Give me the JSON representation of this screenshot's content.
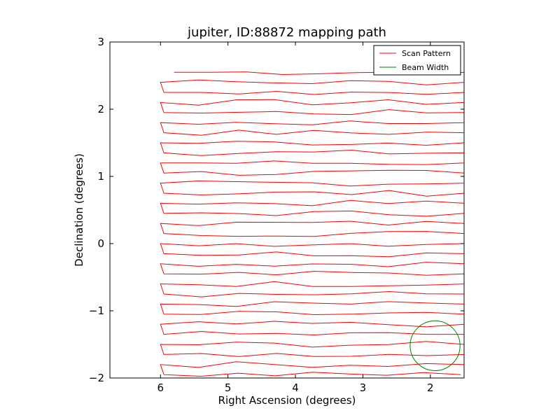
{
  "chart_data": {
    "type": "line",
    "title": "jupiter, ID:88872 mapping path",
    "xlabel": "Right Ascension (degrees)",
    "ylabel": "Declination (degrees)",
    "xlim": [
      6.75,
      1.5
    ],
    "ylim": [
      -2,
      3
    ],
    "x_ticks": [
      "6",
      "5",
      "4",
      "3",
      "2"
    ],
    "y_ticks": [
      "3",
      "2",
      "1",
      "0",
      "−1",
      "−2"
    ],
    "legend": {
      "placement": "top-right",
      "entries": [
        {
          "label": "Scan Pattern",
          "color": "#ff0000"
        },
        {
          "label": "Beam Width",
          "color": "#008000"
        }
      ]
    },
    "series": [
      {
        "name": "Scan Pattern",
        "color": "#ff0000",
        "style": "raster scan of alternating rows",
        "rows": [
          {
            "y": 2.55,
            "from": 5.8,
            "to": 1.5
          },
          {
            "y": 2.4,
            "from": 6.0,
            "to": 1.5
          },
          {
            "y": 2.25,
            "from": 5.95,
            "to": 1.5
          },
          {
            "y": 2.1,
            "from": 6.0,
            "to": 1.5
          },
          {
            "y": 1.95,
            "from": 5.95,
            "to": 1.5
          },
          {
            "y": 1.8,
            "from": 6.0,
            "to": 1.5
          },
          {
            "y": 1.65,
            "from": 5.95,
            "to": 1.5
          },
          {
            "y": 1.5,
            "from": 6.0,
            "to": 1.5
          },
          {
            "y": 1.35,
            "from": 5.95,
            "to": 1.5
          },
          {
            "y": 1.2,
            "from": 6.0,
            "to": 1.5
          },
          {
            "y": 1.05,
            "from": 5.95,
            "to": 1.5
          },
          {
            "y": 0.9,
            "from": 6.0,
            "to": 1.5
          },
          {
            "y": 0.75,
            "from": 5.95,
            "to": 1.5
          },
          {
            "y": 0.6,
            "from": 6.0,
            "to": 1.5
          },
          {
            "y": 0.45,
            "from": 5.95,
            "to": 1.5
          },
          {
            "y": 0.3,
            "from": 6.0,
            "to": 1.5
          },
          {
            "y": 0.15,
            "from": 5.95,
            "to": 1.5
          },
          {
            "y": 0.0,
            "from": 6.0,
            "to": 1.5
          },
          {
            "y": -0.15,
            "from": 5.95,
            "to": 1.5
          },
          {
            "y": -0.3,
            "from": 6.0,
            "to": 1.5
          },
          {
            "y": -0.45,
            "from": 5.95,
            "to": 1.5
          },
          {
            "y": -0.6,
            "from": 6.0,
            "to": 1.5
          },
          {
            "y": -0.75,
            "from": 5.95,
            "to": 1.5
          },
          {
            "y": -0.9,
            "from": 6.0,
            "to": 1.5
          },
          {
            "y": -1.05,
            "from": 5.95,
            "to": 1.5
          },
          {
            "y": -1.2,
            "from": 6.0,
            "to": 1.5
          },
          {
            "y": -1.35,
            "from": 5.95,
            "to": 1.5
          },
          {
            "y": -1.5,
            "from": 6.0,
            "to": 1.5
          },
          {
            "y": -1.65,
            "from": 5.95,
            "to": 1.5
          },
          {
            "y": -1.8,
            "from": 6.0,
            "to": 1.5
          },
          {
            "y": -1.95,
            "from": 5.95,
            "to": 1.55
          }
        ]
      },
      {
        "name": "Beam Width",
        "color": "#008000",
        "type": "circle",
        "center": [
          1.93,
          -1.52
        ],
        "radius": 0.37
      }
    ],
    "grid": false
  }
}
